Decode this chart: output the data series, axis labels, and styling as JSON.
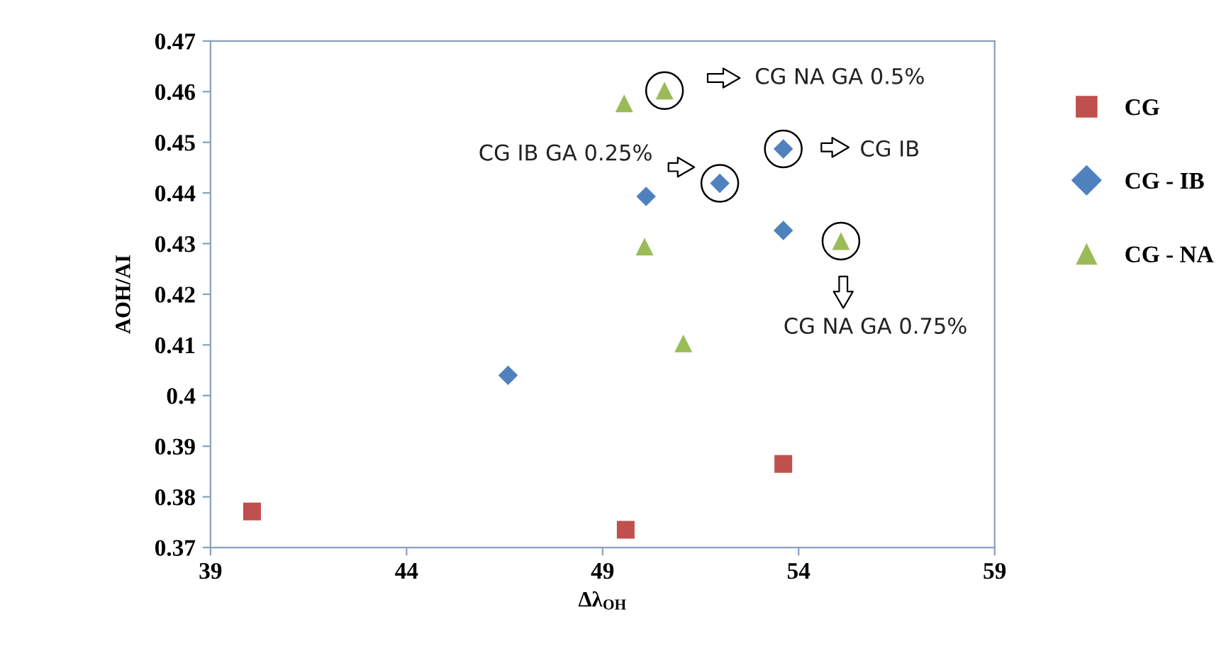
{
  "chart_data": {
    "type": "scatter",
    "xlabel": "Δλ$_{OH}$",
    "ylabel": "AOH/AI",
    "xlim": [
      39,
      59
    ],
    "xticks": [
      39,
      44,
      49,
      54,
      59
    ],
    "ylim": [
      0.37,
      0.47
    ],
    "yticks": [
      0.37,
      0.38,
      0.39,
      0.4,
      0.41,
      0.42,
      0.43,
      0.44,
      0.45,
      0.46,
      0.47
    ],
    "grid": false,
    "legend": "right",
    "series": [
      {
        "name": "CG",
        "color": "#c0504d",
        "marker": "square",
        "x": [
          40.06,
          49.59,
          53.61
        ],
        "values": [
          0.3771,
          0.3735,
          0.3865
        ]
      },
      {
        "name": "CG - IB",
        "color": "#4f81bd",
        "marker": "diamond",
        "x": [
          46.59,
          50.11,
          51.99,
          53.61,
          53.61
        ],
        "values": [
          0.404,
          0.4393,
          0.4419,
          0.4487,
          0.4326
        ]
      },
      {
        "name": "CG - NA",
        "color": "#9bbb59",
        "marker": "triangle",
        "x": [
          49.55,
          50.58,
          50.07,
          51.06,
          55.08
        ],
        "values": [
          0.4577,
          0.4602,
          0.4294,
          0.4103,
          0.4305
        ]
      }
    ],
    "annotations": [
      "CG NA GA 0.5%",
      "CG IB GA 0.25%",
      "CG IB",
      "CG NA GA 0.75%"
    ]
  }
}
